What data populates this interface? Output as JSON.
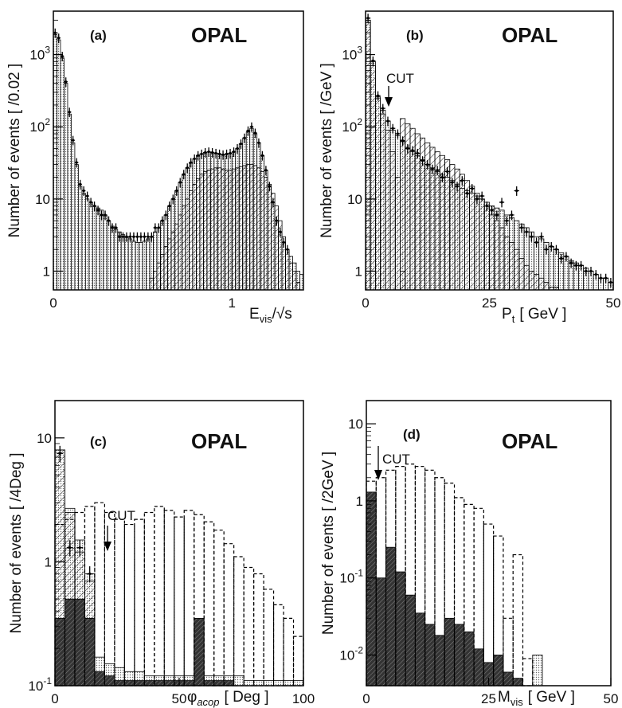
{
  "chart_data": [
    {
      "id": "a",
      "type": "histogram",
      "panel_label": "(a)",
      "experiment_label": "OPAL",
      "ylabel": "Number of events [ /0.02 ]",
      "xlabel": "E_vis/√s",
      "xlabel_main": "E",
      "xlabel_sub": "vis",
      "xlabel_tail": "/√s",
      "xlim": [
        0,
        1.4
      ],
      "ylim": [
        0.55,
        4000
      ],
      "yscale": "log",
      "xticks": [
        0,
        1
      ],
      "xtick_labels": [
        "0",
        "1"
      ],
      "yticks": [
        1,
        10,
        100,
        1000
      ],
      "ytick_labels": [
        "1",
        "10",
        "10 2",
        "10 3"
      ],
      "bin_width": 0.02,
      "series": [
        {
          "name": "",
          "style": "hatched",
          "values": [
            0,
            0,
            0,
            0,
            0,
            0,
            0,
            0,
            0,
            0,
            0,
            0,
            0,
            0,
            0,
            0,
            0,
            0,
            0,
            0,
            0,
            0,
            0,
            0,
            0,
            0,
            0,
            0.8,
            1,
            1.3,
            1.7,
            2.2,
            2.8,
            3.5,
            4.5,
            6,
            8,
            10,
            13,
            16,
            19,
            22,
            24,
            25,
            26,
            27,
            27,
            26,
            25,
            25,
            26,
            27,
            28,
            29,
            30,
            30,
            29,
            27,
            24,
            20,
            16,
            12,
            8,
            5,
            3,
            2,
            1.3,
            1,
            0.7,
            0
          ]
        },
        {
          "name": "",
          "style": "dotted",
          "values": [
            1900,
            1600,
            900,
            400,
            150,
            60,
            30,
            15,
            12,
            10,
            9,
            8,
            7.5,
            7,
            6,
            5,
            4.2,
            3.8,
            3.5,
            3.2,
            3,
            2.8,
            2.6,
            2.5,
            2.5,
            2.6,
            2.8,
            3,
            3.5,
            4,
            5,
            6,
            8,
            10,
            13,
            17,
            22,
            27,
            32,
            36,
            40,
            42,
            44,
            45,
            44,
            43,
            42,
            41,
            42,
            43,
            45,
            50,
            58,
            70,
            85,
            95,
            80,
            60,
            40,
            25,
            15,
            9,
            5,
            3.5,
            2.5,
            2,
            1.6,
            1.3,
            1,
            0.9
          ]
        },
        {
          "name": "",
          "style": "data-points",
          "x": [
            0.01,
            0.03,
            0.05,
            0.07,
            0.09,
            0.11,
            0.13,
            0.15,
            0.17,
            0.19,
            0.21,
            0.23,
            0.25,
            0.27,
            0.29,
            0.31,
            0.33,
            0.35,
            0.37,
            0.39,
            0.41,
            0.43,
            0.45,
            0.47,
            0.49,
            0.51,
            0.53,
            0.55,
            0.57,
            0.59,
            0.61,
            0.63,
            0.65,
            0.67,
            0.69,
            0.71,
            0.73,
            0.75,
            0.77,
            0.79,
            0.81,
            0.83,
            0.85,
            0.87,
            0.89,
            0.91,
            0.93,
            0.95,
            0.97,
            0.99,
            1.01,
            1.03,
            1.05,
            1.07,
            1.09,
            1.11,
            1.13,
            1.15,
            1.17,
            1.19,
            1.21,
            1.23,
            1.25,
            1.27,
            1.29,
            1.31
          ],
          "y": [
            2000,
            1700,
            950,
            420,
            160,
            65,
            32,
            16,
            13,
            11,
            9,
            8,
            7,
            6,
            6,
            5,
            4,
            4,
            3,
            3,
            3,
            3,
            3,
            3,
            3,
            3,
            3,
            3,
            4,
            4,
            5,
            6,
            8,
            10,
            13,
            17,
            22,
            27,
            32,
            36,
            40,
            42,
            44,
            45,
            44,
            43,
            42,
            41,
            42,
            43,
            45,
            50,
            58,
            70,
            88,
            100,
            82,
            60,
            40,
            25,
            15,
            9,
            5,
            3.5,
            2.5,
            2
          ]
        }
      ]
    },
    {
      "id": "b",
      "type": "histogram",
      "panel_label": "(b)",
      "experiment_label": "OPAL",
      "ylabel": "Number of events [ /GeV ]",
      "xlabel": "P_t [ GeV ]",
      "xlabel_main": "P",
      "xlabel_sub": "t",
      "xlabel_tail": "[ GeV ]",
      "xlim": [
        0,
        50
      ],
      "ylim": [
        0.55,
        4000
      ],
      "yscale": "log",
      "xticks": [
        0,
        25,
        50
      ],
      "xtick_labels": [
        "0",
        "25",
        "50"
      ],
      "yticks": [
        1,
        10,
        100,
        1000
      ],
      "ytick_labels": [
        "1",
        "10",
        "10 2",
        "10 3"
      ],
      "annotation": "CUT",
      "cut_x": 2.5,
      "bin_width": 1,
      "series": [
        {
          "name": "",
          "style": "hatched",
          "values": [
            2800,
            700,
            250,
            150,
            90,
            45,
            20,
            1,
            0,
            0
          ]
        },
        {
          "name": "",
          "style": "hatched-tail",
          "values": [
            130,
            110,
            95,
            80,
            70,
            60,
            52,
            45,
            40,
            35,
            30,
            26,
            22,
            18,
            15,
            12,
            10,
            8,
            6,
            5,
            4,
            3,
            2.5,
            2,
            1.5,
            1.2,
            1,
            0.9,
            0.8,
            0.7,
            0.6,
            0.6,
            0.5,
            0.5,
            0.5,
            0.5,
            0.5,
            0.5,
            0.5,
            0.5,
            0.5,
            0.5,
            0.5
          ]
        },
        {
          "name": "",
          "style": "dotted",
          "values": [
            3000,
            800,
            260,
            170,
            120,
            90,
            75,
            62,
            52,
            45,
            40,
            35,
            30,
            27,
            24,
            22,
            20,
            18,
            16,
            14,
            13,
            12,
            11,
            10,
            9,
            8,
            7.5,
            7,
            6,
            5.5,
            5,
            4.5,
            4,
            3.5,
            3,
            2.8,
            2.5,
            2.2,
            2,
            1.8,
            1.6,
            1.4,
            1.3,
            1.2,
            1.1,
            1,
            0.9,
            0.8,
            0.8,
            0.7
          ]
        },
        {
          "name": "",
          "style": "data-points",
          "x": [
            0.5,
            1.5,
            2.5,
            3.5,
            4.5,
            5.5,
            6.5,
            7.5,
            8.5,
            9.5,
            10.5,
            11.5,
            12.5,
            13.5,
            14.5,
            15.5,
            16.5,
            17.5,
            18.5,
            19.5,
            20.5,
            21.5,
            22.5,
            23.5,
            24.5,
            25.5,
            26.5,
            27.5,
            28.5,
            29.5,
            30.5,
            31.5,
            32.5,
            33.5,
            34.5,
            35.5,
            36.5,
            37.5,
            38.5,
            39.5,
            40.5,
            41.5,
            42.5,
            43.5,
            44.5,
            45.5,
            46.5,
            47.5,
            48.5,
            49.5
          ],
          "y": [
            3200,
            820,
            270,
            180,
            120,
            95,
            80,
            64,
            50,
            47,
            43,
            34,
            30,
            26,
            25,
            20,
            24,
            17,
            15,
            18,
            12,
            14,
            10,
            11,
            8,
            7,
            6,
            9,
            5,
            6,
            13,
            4,
            3.5,
            3,
            2.5,
            3,
            2,
            2.2,
            2,
            1.5,
            1.6,
            1.3,
            1.2,
            1.2,
            1,
            1,
            0.9,
            0.8,
            0.8,
            0.7
          ]
        }
      ]
    },
    {
      "id": "c",
      "type": "histogram",
      "panel_label": "(c)",
      "experiment_label": "OPAL",
      "ylabel": "Number of events [ /4Deg ]",
      "xlabel": "φ_acop [ Deg ]",
      "xlabel_main": "φ",
      "xlabel_sub": "acop",
      "xlabel_tail": "[ Deg ]",
      "xlim": [
        0,
        100
      ],
      "ylim": [
        0.1,
        20
      ],
      "yscale": "log",
      "xticks": [
        0,
        50,
        100
      ],
      "xtick_labels": [
        "0",
        "50",
        "100"
      ],
      "yticks": [
        0.1,
        1,
        10
      ],
      "ytick_labels": [
        "10 -1",
        "1",
        "10"
      ],
      "annotation": "CUT",
      "cut_x": 18,
      "bin_width": 4,
      "series": [
        {
          "name": "",
          "style": "hatched",
          "values": [
            8,
            2.5,
            1.2,
            0.7,
            0,
            0,
            0,
            0,
            0,
            0,
            0,
            0,
            0,
            0,
            0,
            0,
            0,
            0,
            0,
            0,
            0,
            0,
            0,
            0,
            0
          ]
        },
        {
          "name": "",
          "style": "dotted",
          "values": [
            8,
            2.7,
            1.5,
            0.8,
            0.17,
            0.15,
            0.14,
            0.13,
            0.13,
            0.12,
            0.12,
            0.12,
            0.12,
            0.12,
            0.3,
            0.12,
            0.12,
            0.12,
            0.12,
            0.11,
            0.11,
            0.11,
            0.11,
            0.11,
            0.11
          ]
        },
        {
          "name": "",
          "style": "dark",
          "values": [
            0.35,
            0.5,
            0.5,
            0.35,
            0.13,
            0.12,
            0.11,
            0.11,
            0.11,
            0.11,
            0.11,
            0.11,
            0.11,
            0.11,
            0.35,
            0.11,
            0.11,
            0.11,
            0.1,
            0.1,
            0.1,
            0.1,
            0.1,
            0.1,
            0.1
          ]
        },
        {
          "name": "",
          "style": "dashed",
          "values": [
            2,
            2.2,
            2.5,
            2.8,
            3,
            2.5,
            2.2,
            2,
            2.2,
            2.5,
            2.8,
            2.6,
            2.3,
            2.6,
            2.4,
            2.1,
            1.8,
            1.4,
            1.1,
            0.9,
            0.8,
            0.6,
            0.45,
            0.35,
            0.25
          ]
        },
        {
          "name": "",
          "style": "data-points",
          "x": [
            2,
            6,
            10,
            14
          ],
          "y": [
            7.5,
            1.3,
            1.3,
            0.8
          ]
        }
      ]
    },
    {
      "id": "d",
      "type": "histogram",
      "panel_label": "(d)",
      "experiment_label": "OPAL",
      "ylabel": "Number of events [ /2GeV ]",
      "xlabel": "M_vis [ GeV ]",
      "xlabel_main": "M",
      "xlabel_sub": "vis",
      "xlabel_tail": "[ GeV ]",
      "xlim": [
        0,
        50
      ],
      "ylim": [
        0.004,
        20
      ],
      "yscale": "log",
      "xticks": [
        0,
        25,
        50
      ],
      "xtick_labels": [
        "0",
        "25",
        "50"
      ],
      "yticks": [
        0.01,
        0.1,
        1,
        10
      ],
      "ytick_labels": [
        "10 -2",
        "10 -1",
        "1",
        "10"
      ],
      "annotation": "CUT",
      "cut_x": 1.5,
      "bin_width": 2,
      "series": [
        {
          "name": "",
          "style": "dashed",
          "values": [
            1.8,
            2,
            2.5,
            2.8,
            3,
            2.8,
            2.5,
            2,
            1.7,
            1.1,
            0.9,
            0.8,
            0.5,
            0.35,
            0.03,
            0.2,
            0.009,
            0,
            0,
            0,
            0,
            0,
            0,
            0,
            0
          ]
        },
        {
          "name": "",
          "style": "dark",
          "values": [
            1.3,
            0.1,
            0.25,
            0.12,
            0.06,
            0.035,
            0.025,
            0.018,
            0.03,
            0.025,
            0.02,
            0.012,
            0.008,
            0.01,
            0.006,
            0.005,
            0,
            0,
            0,
            0,
            0,
            0,
            0,
            0,
            0
          ]
        },
        {
          "name": "",
          "style": "dotted",
          "values": [
            0,
            0,
            0,
            0,
            0,
            0,
            0,
            0,
            0,
            0,
            0,
            0,
            0,
            0,
            0,
            0,
            0,
            0.01,
            0,
            0,
            0,
            0,
            0,
            0,
            0
          ]
        }
      ]
    }
  ]
}
